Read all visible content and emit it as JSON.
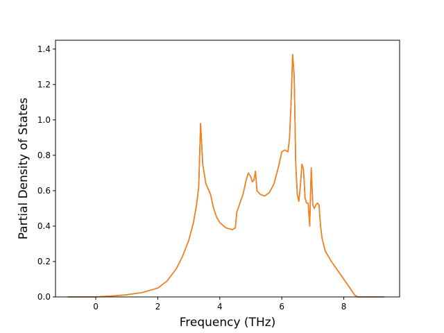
{
  "chart_data": {
    "type": "line",
    "title": "",
    "xlabel": "Frequency (THz)",
    "ylabel": "Partial Density of States",
    "xlim": [
      -1.3,
      9.8
    ],
    "ylim": [
      0.0,
      1.45
    ],
    "xticks": [
      0,
      2,
      4,
      6,
      8
    ],
    "yticks": [
      0.0,
      0.2,
      0.4,
      0.6,
      0.8,
      1.0,
      1.2,
      1.4
    ],
    "xtick_labels": [
      "0",
      "2",
      "4",
      "6",
      "8"
    ],
    "ytick_labels": [
      "0.0",
      "0.2",
      "0.4",
      "0.6",
      "0.8",
      "1.0",
      "1.2",
      "1.4"
    ],
    "grid": false,
    "legend": "none",
    "series": [
      {
        "color": "#1f77b4",
        "x": [
          -0.9,
          0.0,
          0.5,
          1.0,
          1.5,
          2.0,
          2.3,
          2.6,
          2.8,
          3.0,
          3.15,
          3.25,
          3.32,
          3.38,
          3.45,
          3.55,
          3.7,
          3.8,
          3.9,
          4.0,
          4.2,
          4.4,
          4.5,
          4.55,
          4.65,
          4.75,
          4.85,
          4.92,
          5.0,
          5.05,
          5.1,
          5.15,
          5.2,
          5.3,
          5.45,
          5.6,
          5.75,
          5.9,
          6.0,
          6.1,
          6.2,
          6.25,
          6.3,
          6.35,
          6.4,
          6.45,
          6.5,
          6.55,
          6.6,
          6.65,
          6.7,
          6.75,
          6.8,
          6.85,
          6.9,
          6.95,
          7.0,
          7.05,
          7.1,
          7.15,
          7.2,
          7.25,
          7.3,
          7.4,
          7.6,
          7.8,
          8.0,
          8.2,
          8.35,
          8.45,
          8.5,
          9.3
        ],
        "y": [
          0.0,
          0.0,
          0.005,
          0.012,
          0.025,
          0.05,
          0.09,
          0.16,
          0.23,
          0.32,
          0.42,
          0.52,
          0.62,
          0.98,
          0.75,
          0.64,
          0.58,
          0.5,
          0.45,
          0.42,
          0.39,
          0.38,
          0.39,
          0.48,
          0.53,
          0.58,
          0.66,
          0.7,
          0.68,
          0.65,
          0.66,
          0.71,
          0.6,
          0.58,
          0.57,
          0.59,
          0.64,
          0.74,
          0.82,
          0.83,
          0.82,
          0.9,
          1.1,
          1.37,
          1.25,
          0.75,
          0.58,
          0.54,
          0.63,
          0.75,
          0.72,
          0.56,
          0.53,
          0.53,
          0.4,
          0.73,
          0.52,
          0.5,
          0.52,
          0.53,
          0.52,
          0.4,
          0.33,
          0.26,
          0.2,
          0.15,
          0.1,
          0.05,
          0.01,
          0.0,
          0.0,
          0.0
        ]
      },
      {
        "color": "#ff7f0e",
        "x": [
          -0.9,
          0.0,
          0.5,
          1.0,
          1.5,
          2.0,
          2.3,
          2.6,
          2.8,
          3.0,
          3.15,
          3.25,
          3.32,
          3.38,
          3.45,
          3.55,
          3.7,
          3.8,
          3.9,
          4.0,
          4.2,
          4.4,
          4.5,
          4.55,
          4.65,
          4.75,
          4.85,
          4.92,
          5.0,
          5.05,
          5.1,
          5.15,
          5.2,
          5.3,
          5.45,
          5.6,
          5.75,
          5.9,
          6.0,
          6.1,
          6.2,
          6.25,
          6.3,
          6.35,
          6.4,
          6.45,
          6.5,
          6.55,
          6.6,
          6.65,
          6.7,
          6.75,
          6.8,
          6.85,
          6.9,
          6.95,
          7.0,
          7.05,
          7.1,
          7.15,
          7.2,
          7.25,
          7.3,
          7.4,
          7.6,
          7.8,
          8.0,
          8.2,
          8.35,
          8.45,
          8.5,
          9.3
        ],
        "y": [
          0.0,
          0.0,
          0.005,
          0.012,
          0.025,
          0.05,
          0.09,
          0.16,
          0.23,
          0.32,
          0.42,
          0.52,
          0.62,
          0.98,
          0.75,
          0.64,
          0.58,
          0.5,
          0.45,
          0.42,
          0.39,
          0.38,
          0.39,
          0.48,
          0.53,
          0.58,
          0.66,
          0.7,
          0.68,
          0.65,
          0.66,
          0.71,
          0.6,
          0.58,
          0.57,
          0.59,
          0.64,
          0.74,
          0.82,
          0.83,
          0.82,
          0.9,
          1.1,
          1.37,
          1.25,
          0.75,
          0.58,
          0.54,
          0.63,
          0.75,
          0.72,
          0.56,
          0.53,
          0.53,
          0.4,
          0.73,
          0.52,
          0.5,
          0.52,
          0.53,
          0.52,
          0.4,
          0.33,
          0.26,
          0.2,
          0.15,
          0.1,
          0.05,
          0.01,
          0.0,
          0.0,
          0.0
        ]
      }
    ]
  }
}
